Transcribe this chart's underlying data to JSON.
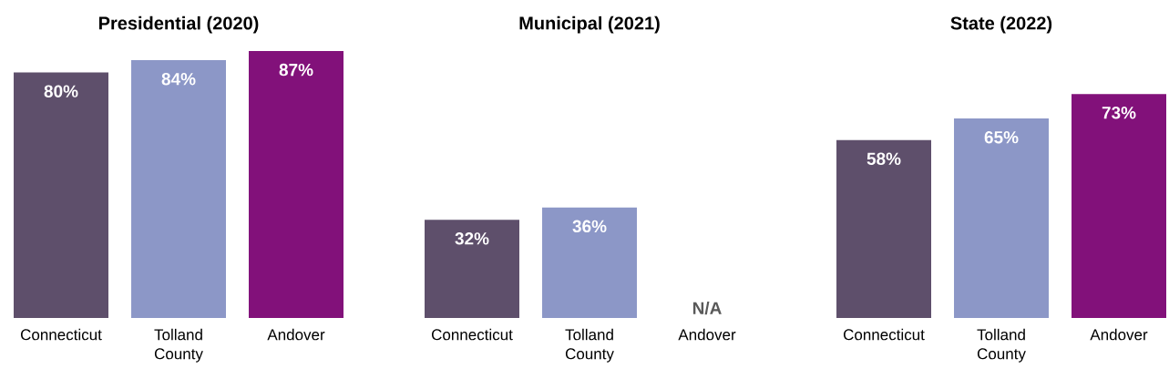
{
  "chart_data": [
    {
      "type": "bar",
      "title": "Presidential (2020)",
      "categories": [
        "Connecticut",
        "Tolland County",
        "Andover"
      ],
      "values": [
        80,
        84,
        87
      ],
      "colors": [
        "#5e4f6b",
        "#8c97c7",
        "#82117a"
      ],
      "value_labels": [
        "80%",
        "84%",
        "87%"
      ]
    },
    {
      "type": "bar",
      "title": "Municipal (2021)",
      "categories": [
        "Connecticut",
        "Tolland County",
        "Andover"
      ],
      "values": [
        32,
        36,
        null
      ],
      "colors": [
        "#5e4f6b",
        "#8c97c7",
        "#82117a"
      ],
      "value_labels": [
        "32%",
        "36%",
        "N/A"
      ]
    },
    {
      "type": "bar",
      "title": "State (2022)",
      "categories": [
        "Connecticut",
        "Tolland County",
        "Andover"
      ],
      "values": [
        58,
        65,
        73
      ],
      "colors": [
        "#5e4f6b",
        "#8c97c7",
        "#82117a"
      ],
      "value_labels": [
        "58%",
        "65%",
        "73%"
      ]
    }
  ]
}
